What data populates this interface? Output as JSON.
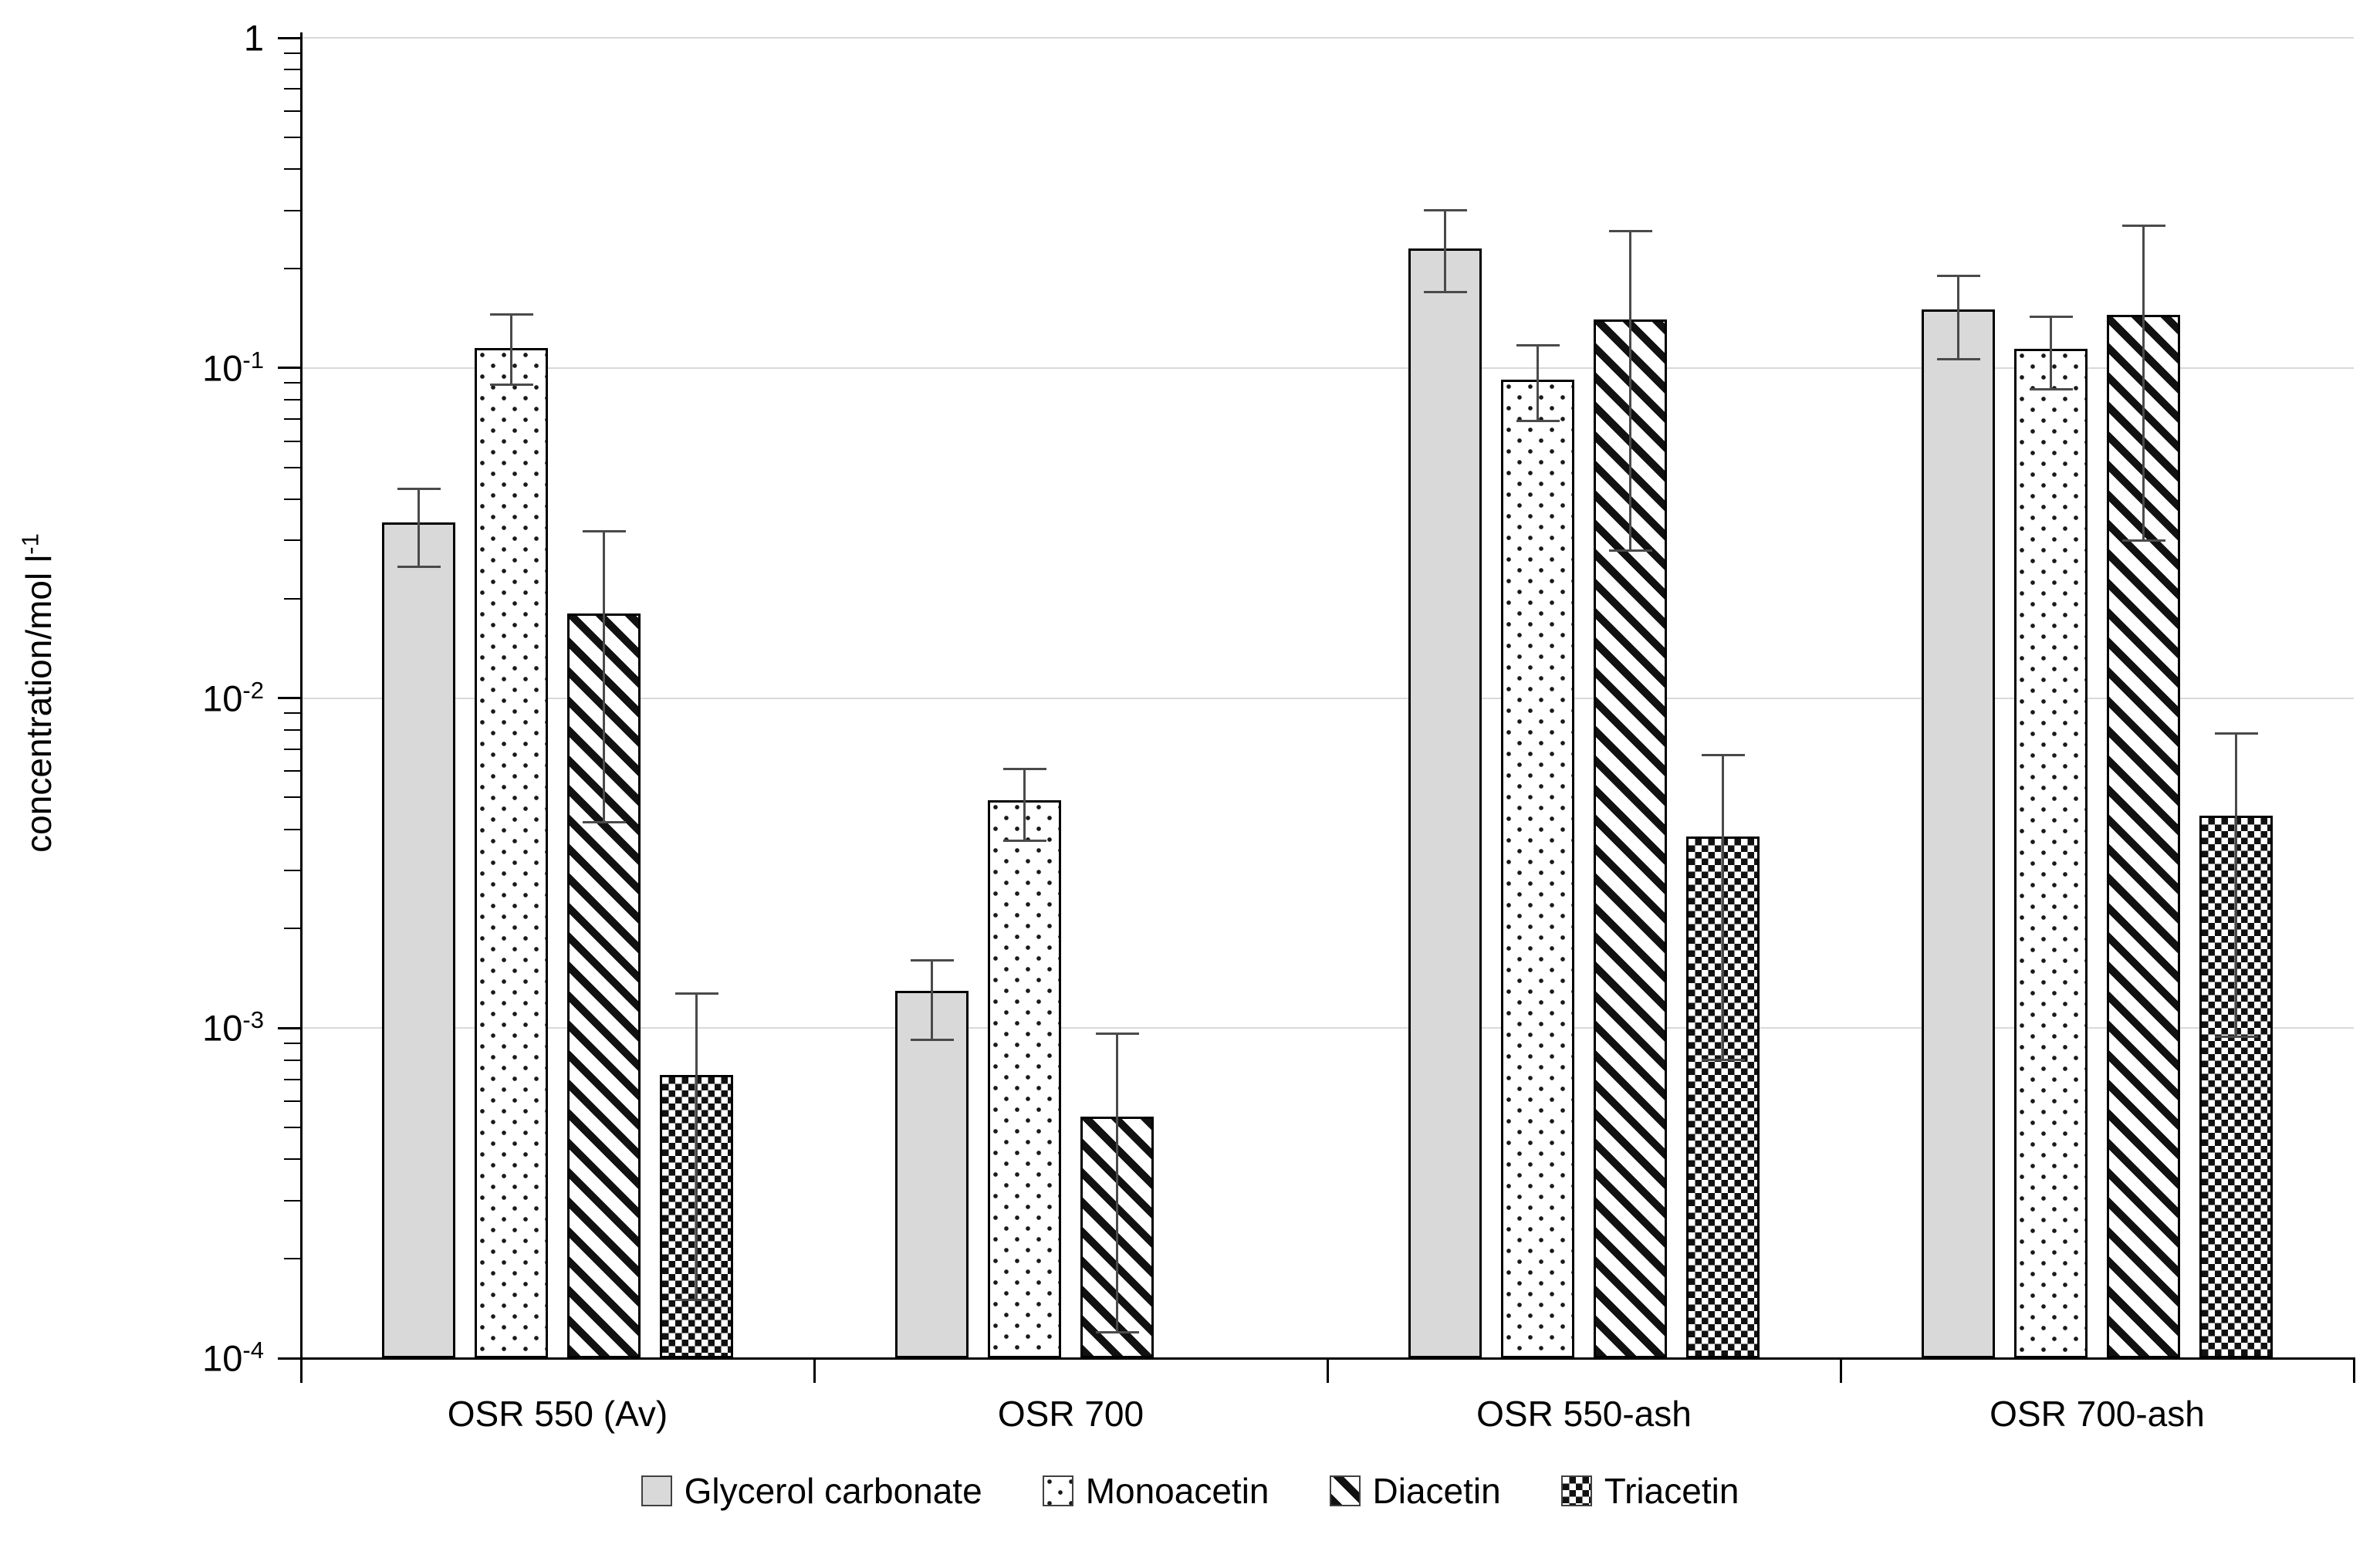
{
  "y_axis": {
    "title_main": "concentration/mol l",
    "title_sup": "-1",
    "ticks": [
      {
        "main": "1",
        "sup": "",
        "value": 1
      },
      {
        "main": "10",
        "sup": "-1",
        "value": 0.1
      },
      {
        "main": "10",
        "sup": "-2",
        "value": 0.01
      },
      {
        "main": "10",
        "sup": "-3",
        "value": 0.001
      },
      {
        "main": "10",
        "sup": "-4",
        "value": 0.0001
      }
    ]
  },
  "chart_data": {
    "type": "bar",
    "y_scale": "log",
    "ylim": [
      0.0001,
      1
    ],
    "grid": "horizontal-major",
    "legend_position": "bottom",
    "title": "",
    "xlabel": "",
    "ylabel": "concentration/mol l-1",
    "categories": [
      "OSR 550 (Av)",
      "OSR 700",
      "OSR 550-ash",
      "OSR 700-ash"
    ],
    "series": [
      {
        "name": "Glycerol carbonate",
        "pattern": "solid-gray",
        "fill_color": "#d9d9d9",
        "values": [
          0.034,
          0.0013,
          0.23,
          0.15
        ],
        "err_lo": [
          0.025,
          0.00092,
          0.17,
          0.106
        ],
        "err_hi": [
          0.043,
          0.0016,
          0.3,
          0.19
        ]
      },
      {
        "name": "Monoacetin",
        "pattern": "dots",
        "fill_color": "#ffffff",
        "values": [
          0.115,
          0.0049,
          0.092,
          0.114
        ],
        "err_lo": [
          0.089,
          0.0037,
          0.069,
          0.086
        ],
        "err_hi": [
          0.145,
          0.0061,
          0.117,
          0.143
        ]
      },
      {
        "name": "Diacetin",
        "pattern": "diagonal-stripes",
        "fill_color": "#ffffff",
        "values": [
          0.018,
          0.00054,
          0.14,
          0.145
        ],
        "err_lo": [
          0.0042,
          0.00012,
          0.028,
          0.03
        ],
        "err_hi": [
          0.032,
          0.00096,
          0.26,
          0.27
        ]
      },
      {
        "name": "Triacetin",
        "pattern": "checkerboard",
        "fill_color": "#ffffff",
        "values": [
          0.00072,
          null,
          0.0038,
          0.0044
        ],
        "err_lo": [
          0.00015,
          null,
          0.0008,
          0.00094
        ],
        "err_hi": [
          0.00127,
          null,
          0.0067,
          0.0078
        ]
      }
    ]
  },
  "colors": {
    "gridline": "#d9d9d9",
    "axis": "#000000",
    "error_bar": "#4a4a4a",
    "bar_border": "#000000",
    "solid_fill": "#d9d9d9"
  }
}
